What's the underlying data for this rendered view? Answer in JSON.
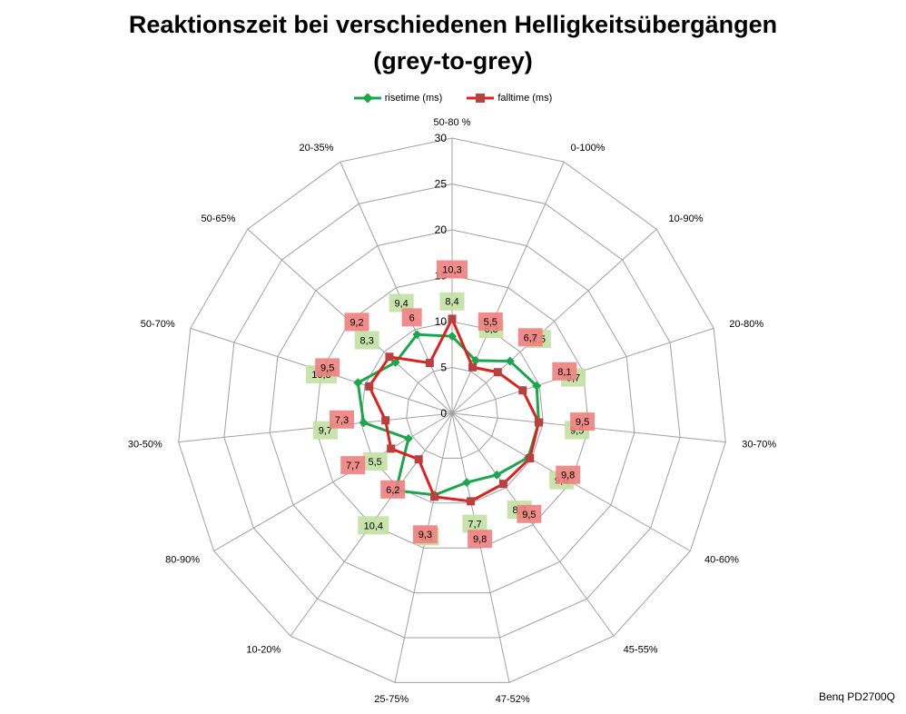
{
  "title_line1": "Reaktionszeit bei verschiedenen Helligkeitsübergängen",
  "title_line2": "(grey-to-grey)",
  "footer": "Benq PD2700Q",
  "colors": {
    "rise": "#1aa64a",
    "fall": "#e0201e",
    "rise_label_bg": "#c2e0a2",
    "fall_label_bg": "#f08080",
    "grid": "#a0a0a0"
  },
  "chart_data": {
    "type": "radar",
    "title": "Reaktionszeit bei verschiedenen Helligkeitsübergängen (grey-to-grey)",
    "categories": [
      "50-80 %",
      "0-100%",
      "10-90%",
      "20-80%",
      "30-70%",
      "40-60%",
      "45-55%",
      "47-52%",
      "25-75%",
      "10-20%",
      "80-90%",
      "30-50%",
      "50-70%",
      "50-65%",
      "20-35%"
    ],
    "series": [
      {
        "name": "risetime (ms)",
        "values": [
          8.4,
          6.3,
          8.5,
          9.7,
          9.5,
          9.6,
          8.3,
          7.7,
          9.1,
          10.4,
          5.5,
          9.7,
          10.8,
          8.3,
          9.4
        ]
      },
      {
        "name": "falltime (ms)",
        "values": [
          10.3,
          5.5,
          6.7,
          8.1,
          9.5,
          9.8,
          9.5,
          9.8,
          9.3,
          6.2,
          7.7,
          7.3,
          9.5,
          9.2,
          6.0
        ]
      }
    ],
    "labels": {
      "risetime (ms)": [
        "8,4",
        "6,3",
        "8,5",
        "9,7",
        "9,5",
        "9,6",
        "8,3",
        "7,7",
        "9,1",
        "10,4",
        "5,5",
        "9,7",
        "10,8",
        "8,3",
        "9,4"
      ],
      "falltime (ms)": [
        "10,3",
        "5,5",
        "6,7",
        "8,1",
        "9,5",
        "9,8",
        "9,5",
        "9,8",
        "9,3",
        "6,2",
        "7,7",
        "7,3",
        "9,5",
        "9,2",
        "6"
      ]
    },
    "rmax": 30,
    "ticks": [
      "0",
      "5",
      "10",
      "15",
      "20",
      "25",
      "30"
    ],
    "grid": true,
    "legend_position": "top"
  }
}
